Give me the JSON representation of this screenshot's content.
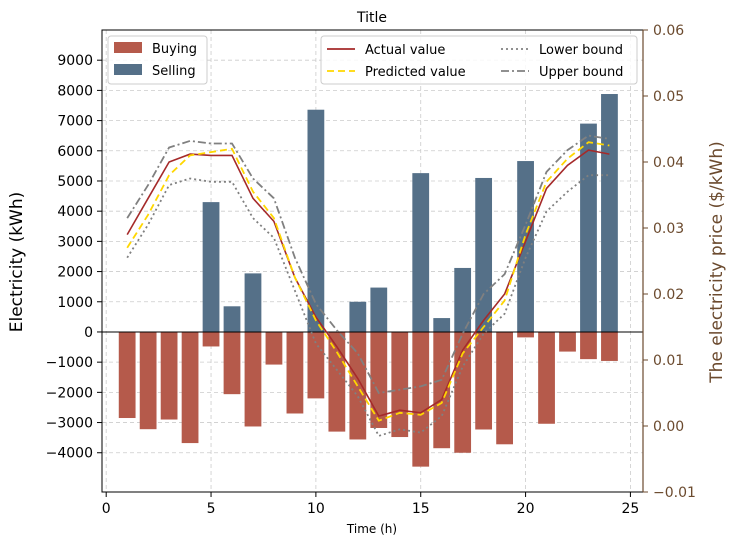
{
  "chart_data": {
    "type": "bar",
    "title": "Title",
    "xlabel": "Time (h)",
    "ylabel": "Electricity (kWh)",
    "y2label": "The electricity price ($/kWh)",
    "xlim": [
      -0.2,
      25.6
    ],
    "ylim": [
      -5300,
      10000
    ],
    "y2lim": [
      -0.01,
      0.06
    ],
    "x_ticks": [
      0,
      5,
      10,
      15,
      20,
      25
    ],
    "y_ticks": [
      -4000,
      -3000,
      -2000,
      -1000,
      0,
      1000,
      2000,
      3000,
      4000,
      5000,
      6000,
      7000,
      8000,
      9000
    ],
    "y2_ticks": [
      -0.01,
      0.0,
      0.01,
      0.02,
      0.03,
      0.04,
      0.05,
      0.06
    ],
    "grid": true,
    "x": [
      1,
      2,
      3,
      4,
      5,
      6,
      7,
      8,
      9,
      10,
      11,
      12,
      13,
      14,
      15,
      16,
      17,
      18,
      19,
      20,
      21,
      22,
      23,
      24
    ],
    "bar_series": [
      {
        "name": "Buying",
        "color": "#b55a4b",
        "values": [
          -2850,
          -3220,
          -2900,
          -3680,
          -480,
          -2060,
          -3130,
          -1080,
          -2700,
          -2200,
          -3300,
          -3560,
          -3180,
          -3480,
          -4460,
          -3850,
          -4000,
          -3230,
          -3720,
          -180,
          -3040,
          -650,
          -900,
          -960
        ]
      },
      {
        "name": "Selling",
        "color": "#557088",
        "values": [
          0,
          0,
          0,
          0,
          4300,
          850,
          1940,
          0,
          0,
          7360,
          0,
          1000,
          1470,
          0,
          5260,
          460,
          2120,
          5100,
          0,
          5660,
          0,
          0,
          6900,
          7880
        ]
      }
    ],
    "line_series": [
      {
        "name": "Actual value",
        "color": "#a52a2a",
        "style": "solid",
        "values": [
          0.029,
          0.0345,
          0.04,
          0.0412,
          0.041,
          0.041,
          0.0345,
          0.031,
          0.0225,
          0.0165,
          0.012,
          0.0072,
          0.0015,
          0.0024,
          0.002,
          0.004,
          0.0115,
          0.016,
          0.02,
          0.028,
          0.036,
          0.0395,
          0.0418,
          0.0412
        ]
      },
      {
        "name": "Predicted value",
        "color": "#ffd700",
        "style": "dashed",
        "values": [
          0.027,
          0.032,
          0.038,
          0.041,
          0.0415,
          0.042,
          0.0355,
          0.0315,
          0.0225,
          0.016,
          0.0112,
          0.006,
          0.0008,
          0.002,
          0.0017,
          0.0035,
          0.011,
          0.015,
          0.019,
          0.029,
          0.037,
          0.0405,
          0.043,
          0.0425
        ]
      },
      {
        "name": "Lower bound",
        "color": "#808080",
        "style": "dotted",
        "values": [
          0.0255,
          0.0305,
          0.0365,
          0.0375,
          0.037,
          0.037,
          0.0315,
          0.0285,
          0.0205,
          0.0125,
          0.0085,
          0.0045,
          -0.0015,
          -0.0005,
          -0.001,
          0.0015,
          0.009,
          0.014,
          0.017,
          0.0255,
          0.0325,
          0.0355,
          0.038,
          0.038
        ]
      },
      {
        "name": "Upper bound",
        "color": "#808080",
        "style": "dashdot",
        "values": [
          0.0315,
          0.0365,
          0.0422,
          0.0432,
          0.0428,
          0.0428,
          0.0375,
          0.0345,
          0.0255,
          0.0185,
          0.0145,
          0.011,
          0.005,
          0.0055,
          0.006,
          0.007,
          0.014,
          0.02,
          0.023,
          0.0305,
          0.0385,
          0.0418,
          0.044,
          0.0435
        ]
      }
    ],
    "legend_left": {
      "position": "top-left",
      "entries": [
        "Buying",
        "Selling"
      ]
    },
    "legend_right": {
      "position": "top-right",
      "entries": [
        "Actual value",
        "Predicted value",
        "Lower bound",
        "Upper bound"
      ]
    }
  }
}
